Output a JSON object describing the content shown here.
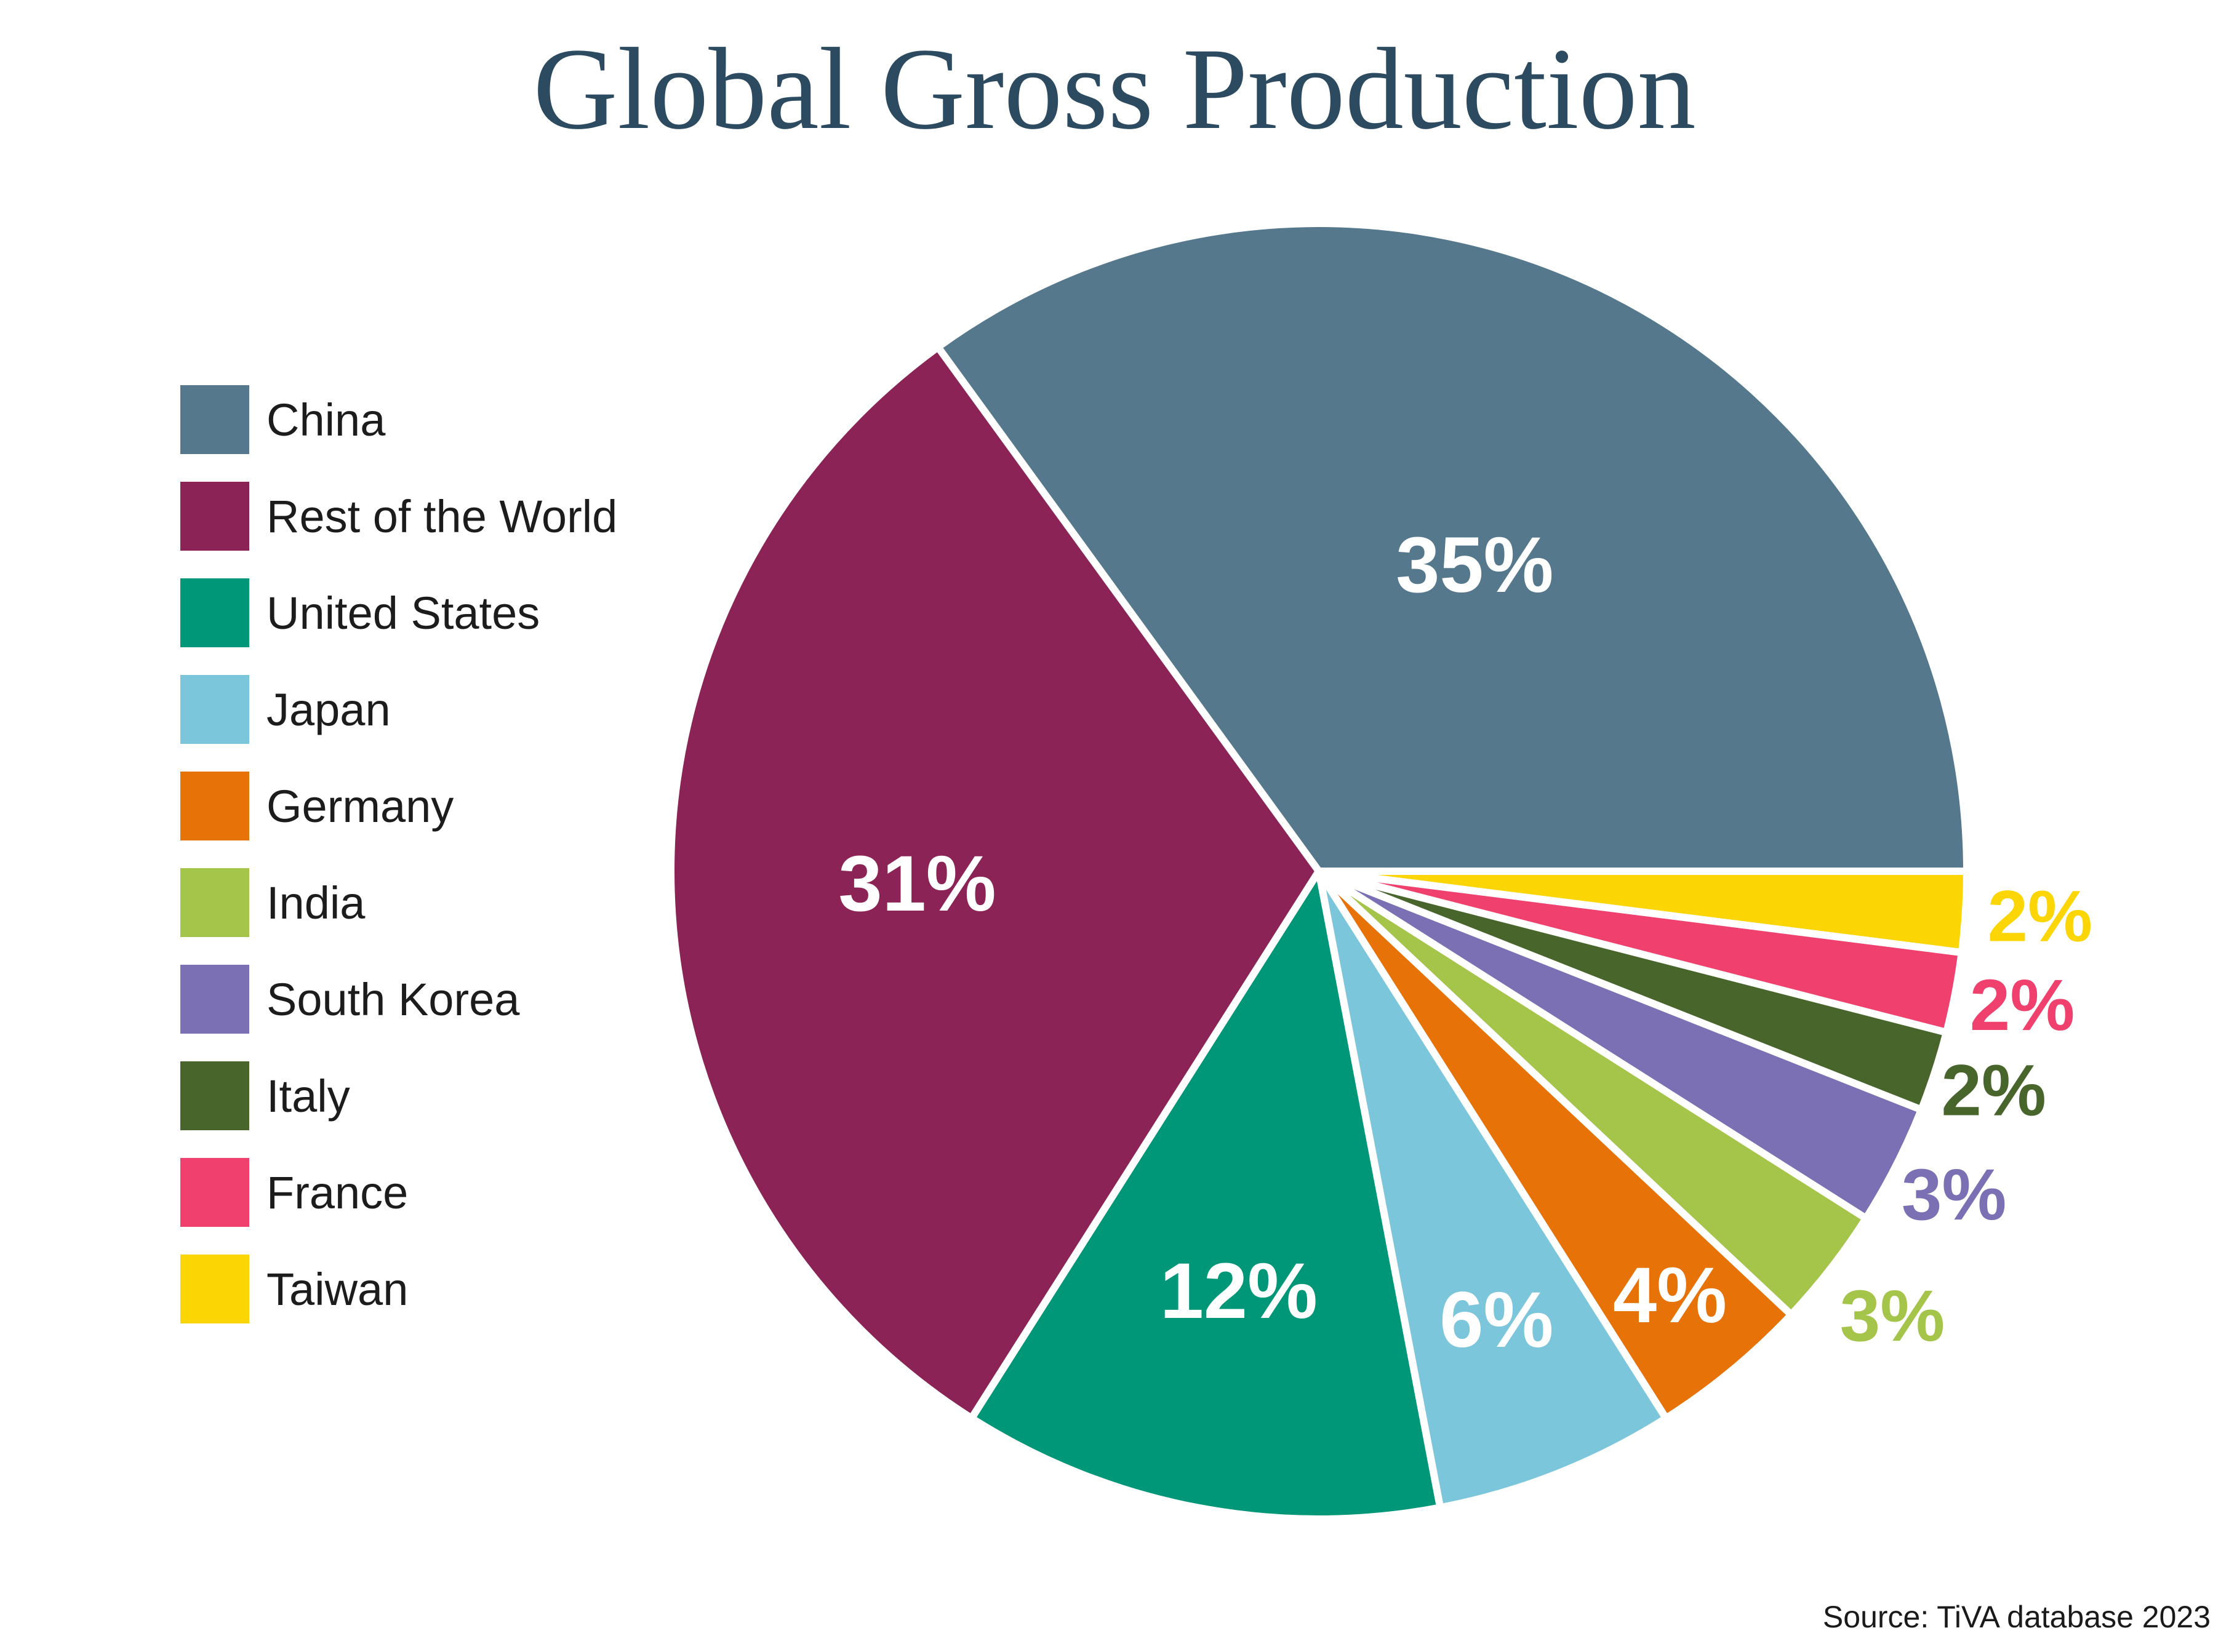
{
  "chart_data": {
    "type": "pie",
    "title": "Global Gross Production",
    "legend_position": "left",
    "start_angle_deg": 0,
    "direction": "counterclockwise",
    "inside_label_color": "#ffffff",
    "label_radii": [
      0.53,
      0.62,
      0.66,
      0.745,
      0.85,
      1.12,
      1.1,
      1.095,
      1.105,
      1.115
    ],
    "series": [
      {
        "name": "China",
        "value": 35,
        "label": "35%",
        "color": "#55788d"
      },
      {
        "name": "Rest of the World",
        "value": 31,
        "label": "31%",
        "color": "#8c2356"
      },
      {
        "name": "United States",
        "value": 12,
        "label": "12%",
        "color": "#009678"
      },
      {
        "name": "Japan",
        "value": 6,
        "label": "6%",
        "color": "#7cc6db"
      },
      {
        "name": "Germany",
        "value": 4,
        "label": "4%",
        "color": "#e67208"
      },
      {
        "name": "India",
        "value": 3,
        "label": "3%",
        "color": "#a5c44a"
      },
      {
        "name": "South Korea",
        "value": 3,
        "label": "3%",
        "color": "#7a70b3"
      },
      {
        "name": "Italy",
        "value": 2,
        "label": "2%",
        "color": "#48652b"
      },
      {
        "name": "France",
        "value": 2,
        "label": "2%",
        "color": "#f0416e"
      },
      {
        "name": "Taiwan",
        "value": 2,
        "label": "2%",
        "color": "#fcd504"
      }
    ]
  },
  "source": {
    "text": "Source: TiVA database 2023"
  }
}
